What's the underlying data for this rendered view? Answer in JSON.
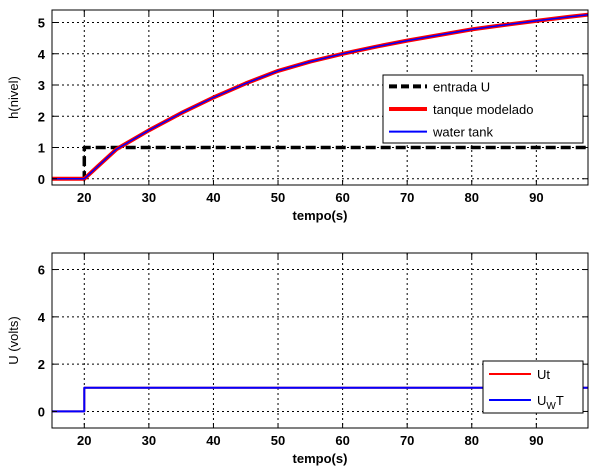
{
  "chart_data": [
    {
      "type": "line",
      "xlabel": "tempo(s)",
      "ylabel": "h(nivel)",
      "xlim": [
        15,
        98
      ],
      "ylim": [
        -0.2,
        5.4
      ],
      "xticks": [
        20,
        30,
        40,
        50,
        60,
        70,
        80,
        90
      ],
      "yticks": [
        0,
        1,
        2,
        3,
        4,
        5
      ],
      "grid": true,
      "legend_position": "right",
      "series": [
        {
          "name": "entrada U",
          "color": "#000000",
          "style": "dashed",
          "x": [
            15,
            20,
            20,
            98
          ],
          "y": [
            0,
            0,
            1,
            1
          ]
        },
        {
          "name": "tanque modelado",
          "color": "#ff0000",
          "style": "solid",
          "x": [
            15,
            20,
            22,
            25,
            30,
            35,
            40,
            45,
            50,
            55,
            60,
            65,
            70,
            75,
            80,
            85,
            90,
            95,
            98
          ],
          "y": [
            0,
            0,
            0.38,
            0.95,
            1.55,
            2.1,
            2.6,
            3.05,
            3.45,
            3.75,
            4.0,
            4.22,
            4.42,
            4.6,
            4.78,
            4.92,
            5.05,
            5.18,
            5.25
          ]
        },
        {
          "name": "water tank",
          "color": "#0000ff",
          "style": "solid",
          "x": [
            15,
            20,
            22,
            25,
            30,
            35,
            40,
            45,
            50,
            55,
            60,
            65,
            70,
            75,
            80,
            85,
            90,
            95,
            98
          ],
          "y": [
            0,
            0,
            0.38,
            0.95,
            1.55,
            2.1,
            2.6,
            3.05,
            3.45,
            3.75,
            4.0,
            4.22,
            4.42,
            4.6,
            4.78,
            4.92,
            5.05,
            5.18,
            5.25
          ]
        }
      ]
    },
    {
      "type": "line",
      "xlabel": "tempo(s)",
      "ylabel": "U (volts)",
      "xlim": [
        15,
        98
      ],
      "ylim": [
        -0.7,
        6.7
      ],
      "xticks": [
        20,
        30,
        40,
        50,
        60,
        70,
        80,
        90
      ],
      "yticks": [
        0,
        2,
        4,
        6
      ],
      "grid": true,
      "legend_position": "bottom-right",
      "series": [
        {
          "name": "Ut",
          "color": "#ff0000",
          "style": "solid",
          "x": [
            15,
            20,
            20,
            98
          ],
          "y": [
            0,
            0,
            1,
            1
          ]
        },
        {
          "name": "UWT",
          "name_base": "U",
          "name_sub": "W",
          "name_tail": "T",
          "color": "#0000ff",
          "style": "solid",
          "x": [
            15,
            20,
            20,
            98
          ],
          "y": [
            0,
            0,
            1,
            1
          ]
        }
      ]
    }
  ]
}
